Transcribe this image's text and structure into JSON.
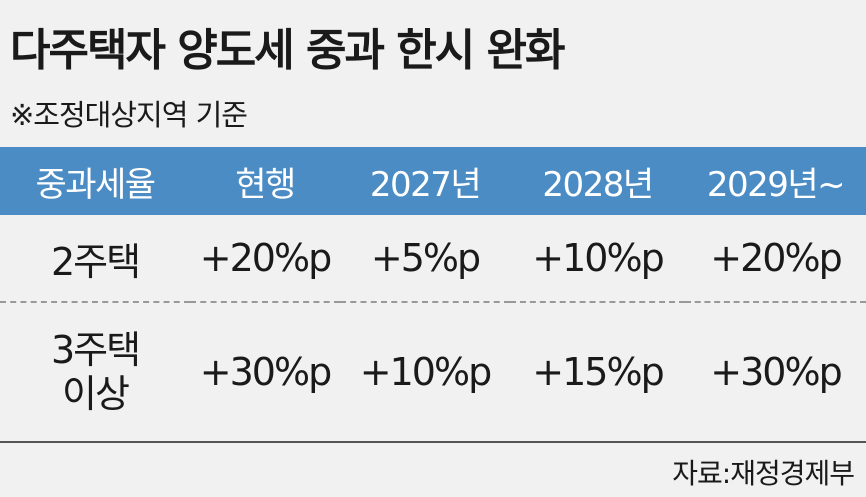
{
  "header": {
    "title": "다주택자 양도세 중과 한시 완화",
    "subtitle": "※조정대상지역 기준"
  },
  "table": {
    "headers": [
      "중과세율",
      "현행",
      "2027년",
      "2028년",
      "2029년~"
    ],
    "rows": [
      {
        "label": [
          "2주택"
        ],
        "cells": [
          "+20%p",
          "+5%p",
          "+10%p",
          "+20%p"
        ]
      },
      {
        "label": [
          "3주택",
          "이상"
        ],
        "cells": [
          "+30%p",
          "+10%p",
          "+15%p",
          "+30%p"
        ]
      }
    ]
  },
  "footer": {
    "source": "자료:재정경제부"
  }
}
